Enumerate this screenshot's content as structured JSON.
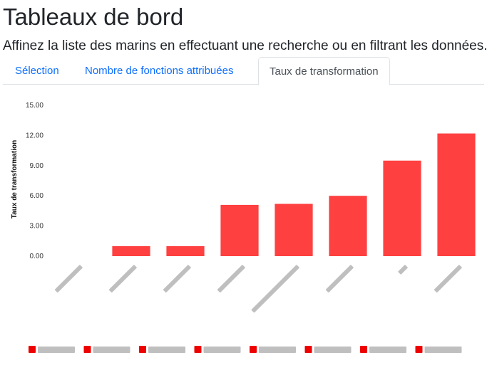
{
  "header": {
    "title": "Tableaux de bord",
    "subtitle": "Affinez la liste des marins en effectuant une recherche ou en filtrant les données."
  },
  "tabs": [
    {
      "label": "Sélection",
      "active": false
    },
    {
      "label": "Nombre de fonctions attribuées",
      "active": false
    },
    {
      "label": "Taux de transformation",
      "active": true
    }
  ],
  "colors": {
    "bar": "#ff4040",
    "legend": "#ee0000",
    "tab_link": "#0d6efd"
  },
  "chart_data": {
    "type": "bar",
    "ylabel": "Taux de transformation",
    "ylim": [
      0,
      15
    ],
    "yticks": [
      "0.00",
      "3.00",
      "6.00",
      "9.00",
      "12.00",
      "15.00"
    ],
    "categories_visible": false,
    "values": [
      0,
      1.0,
      1.0,
      5.1,
      5.2,
      6.0,
      9.5,
      12.2
    ],
    "grid": false,
    "legend_position": "bottom"
  }
}
